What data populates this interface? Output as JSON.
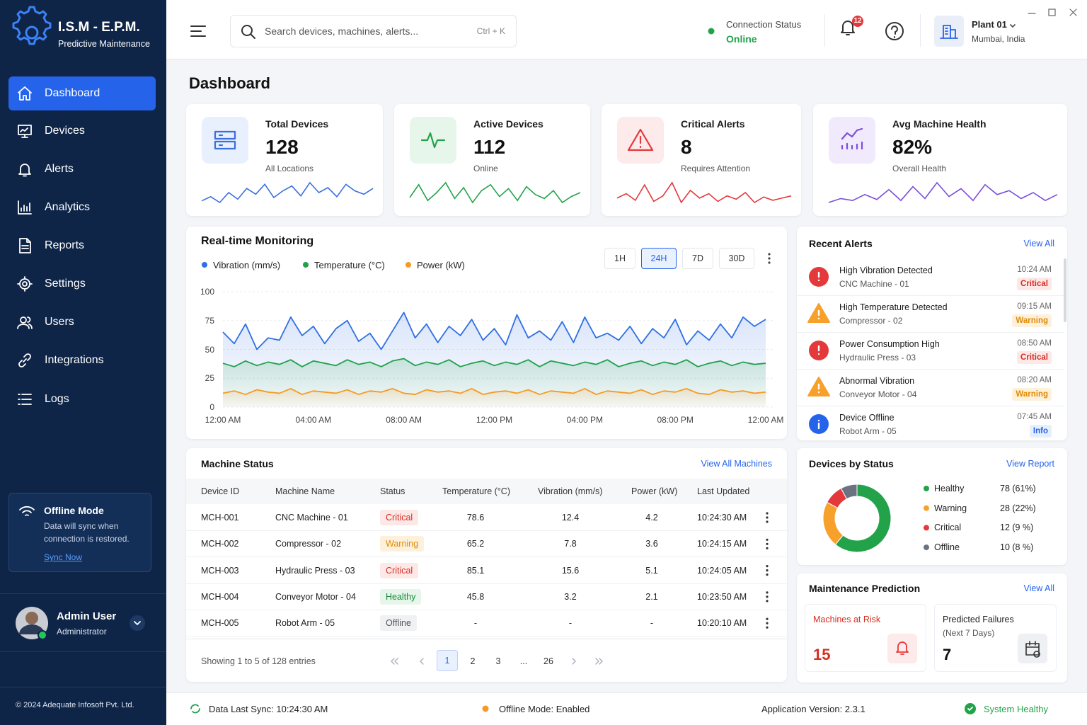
{
  "brand": {
    "title": "I.S.M - E.P.M.",
    "subtitle": "Predictive Maintenance"
  },
  "nav": [
    "Dashboard",
    "Devices",
    "Alerts",
    "Analytics",
    "Reports",
    "Settings",
    "Users",
    "Integrations",
    "Logs"
  ],
  "offline": {
    "title": "Offline Mode",
    "text": "Data will sync when connection is restored.",
    "link": "Sync Now"
  },
  "user": {
    "name": "Admin User",
    "role": "Administrator"
  },
  "copyright": "© 2024 Adequate Infosoft Pvt. Ltd.",
  "header": {
    "search_placeholder": "Search devices, machines, alerts...",
    "shortcut": "Ctrl + K",
    "connection_label": "Connection Status",
    "connection_value": "Online",
    "notifications": 12,
    "plant": "Plant 01",
    "location": "Mumbai, India"
  },
  "page_title": "Dashboard",
  "kpis": [
    {
      "label": "Total Devices",
      "value": 128,
      "sub": "All Locations",
      "color": "#3b6fe0",
      "trend": [
        40,
        45,
        38,
        50,
        42,
        55,
        48,
        60,
        44,
        52,
        58,
        46,
        62,
        50,
        56,
        45,
        60,
        52,
        48,
        55
      ]
    },
    {
      "label": "Active Devices",
      "value": 112,
      "sub": "Online",
      "color": "#22a34a",
      "trend": [
        45,
        58,
        42,
        50,
        60,
        44,
        55,
        40,
        52,
        58,
        46,
        54,
        42,
        56,
        48,
        44,
        52,
        40,
        46,
        50
      ]
    },
    {
      "label": "Critical Alerts",
      "value": 8,
      "sub": "Requires Attention",
      "color": "#e5383b",
      "trend": [
        48,
        52,
        46,
        60,
        45,
        50,
        62,
        44,
        55,
        48,
        52,
        45,
        50,
        47,
        53,
        44,
        49,
        46,
        48,
        50
      ]
    },
    {
      "label": "Avg Machine Health",
      "value": "82%",
      "sub": "Overall Health",
      "color": "#7c4ddb",
      "trend": [
        42,
        46,
        44,
        50,
        45,
        55,
        44,
        58,
        46,
        62,
        48,
        56,
        44,
        60,
        50,
        54,
        46,
        52,
        44,
        50
      ]
    }
  ],
  "chart_data": [
    {
      "type": "line",
      "title": "Real-time Monitoring",
      "ranges": [
        "1H",
        "24H",
        "7D",
        "30D"
      ],
      "selected_range": "24H",
      "categories": [
        "12:00 AM",
        null,
        null,
        null,
        null,
        null,
        null,
        null,
        "04:00 AM",
        null,
        null,
        null,
        null,
        null,
        null,
        null,
        "08:00 AM",
        null,
        null,
        null,
        null,
        null,
        null,
        null,
        "12:00 PM",
        null,
        null,
        null,
        null,
        null,
        null,
        null,
        "04:00 PM",
        null,
        null,
        null,
        null,
        null,
        null,
        null,
        "08:00 PM",
        null,
        null,
        null,
        null,
        null,
        null,
        null,
        "12:00 AM"
      ],
      "ylim": [
        0,
        100
      ],
      "yticks": [
        0,
        25,
        50,
        75,
        100
      ],
      "grid": true,
      "series": [
        {
          "name": "Vibration (mm/s)",
          "color": "#2f6fe4",
          "values": [
            65,
            55,
            72,
            50,
            60,
            58,
            78,
            62,
            70,
            55,
            68,
            75,
            57,
            64,
            50,
            66,
            82,
            60,
            72,
            56,
            70,
            62,
            76,
            58,
            68,
            54,
            80,
            60,
            66,
            58,
            74,
            56,
            78,
            60,
            64,
            58,
            70,
            55,
            68,
            60,
            76,
            54,
            66,
            58,
            72,
            60,
            78,
            70,
            76
          ]
        },
        {
          "name": "Temperature (°C)",
          "color": "#22a04b",
          "values": [
            38,
            35,
            40,
            36,
            39,
            37,
            41,
            35,
            40,
            38,
            36,
            41,
            37,
            39,
            35,
            40,
            42,
            36,
            39,
            37,
            41,
            35,
            38,
            40,
            36,
            39,
            37,
            41,
            35,
            40,
            38,
            36,
            39,
            37,
            41,
            35,
            38,
            40,
            36,
            39,
            37,
            41,
            35,
            38,
            40,
            36,
            39,
            37,
            38
          ]
        },
        {
          "name": "Power (kW)",
          "color": "#f59a23",
          "values": [
            12,
            14,
            11,
            15,
            13,
            12,
            16,
            11,
            14,
            13,
            12,
            15,
            11,
            14,
            13,
            16,
            12,
            11,
            15,
            13,
            14,
            12,
            16,
            11,
            13,
            14,
            12,
            15,
            11,
            14,
            13,
            12,
            16,
            11,
            14,
            13,
            12,
            15,
            11,
            14,
            13,
            16,
            12,
            11,
            15,
            13,
            14,
            12,
            13
          ]
        }
      ]
    },
    {
      "type": "donut",
      "title": "Devices by Status",
      "link": "View Report",
      "categories": [
        "Healthy",
        "Warning",
        "Critical",
        "Offline"
      ],
      "values": [
        78,
        28,
        12,
        10
      ],
      "value_labels": [
        "78 (61%)",
        "28 (22%)",
        "12 (9 %)",
        "10 (8 %)"
      ],
      "colors": [
        "#22a34a",
        "#f7a12b",
        "#e5383b",
        "#6b7280"
      ]
    }
  ],
  "alerts": {
    "title": "Recent Alerts",
    "link": "View All",
    "items": [
      {
        "title": "High Vibration Detected",
        "device": "CNC Machine - 01",
        "time": "10:24 AM",
        "level": "Critical"
      },
      {
        "title": "High Temperature Detected",
        "device": "Compressor - 02",
        "time": "09:15 AM",
        "level": "Warning"
      },
      {
        "title": "Power Consumption High",
        "device": "Hydraulic Press - 03",
        "time": "08:50 AM",
        "level": "Critical"
      },
      {
        "title": "Abnormal Vibration",
        "device": "Conveyor Motor - 04",
        "time": "08:20 AM",
        "level": "Warning"
      },
      {
        "title": "Device Offline",
        "device": "Robot Arm - 05",
        "time": "07:45 AM",
        "level": "Info"
      }
    ]
  },
  "table": {
    "title": "Machine Status",
    "link": "View All Machines",
    "columns": [
      "Device ID",
      "Machine Name",
      "Status",
      "Temperature (°C)",
      "Vibration (mm/s)",
      "Power (kW)",
      "Last Updated"
    ],
    "rows": [
      [
        "MCH-001",
        "CNC Machine - 01",
        "Critical",
        78.6,
        12.4,
        4.2,
        "10:24:30 AM"
      ],
      [
        "MCH-002",
        "Compressor - 02",
        "Warning",
        65.2,
        7.8,
        3.6,
        "10:24:15 AM"
      ],
      [
        "MCH-003",
        "Hydraulic Press - 03",
        "Critical",
        85.1,
        15.6,
        5.1,
        "10:24:05 AM"
      ],
      [
        "MCH-004",
        "Conveyor Motor - 04",
        "Healthy",
        45.8,
        3.2,
        2.1,
        "10:23:50 AM"
      ],
      [
        "MCH-005",
        "Robot Arm - 05",
        "Offline",
        "-",
        "-",
        "-",
        "10:20:10 AM"
      ]
    ],
    "footer": "Showing 1 to 5 of 128 entries",
    "pages": [
      "1",
      "2",
      "3",
      "...",
      "26"
    ]
  },
  "maintenance": {
    "title": "Maintenance Prediction",
    "link": "View All",
    "risk_label": "Machines at Risk",
    "risk_value": 15,
    "failures_label": "Predicted Failures",
    "failures_period": "(Next 7 Days)",
    "failures_value": 7
  },
  "footer": {
    "sync": "Data Last Sync: 10:24:30 AM",
    "offline": "Offline Mode: Enabled",
    "version": "Application Version: 2.3.1",
    "health": "System Healthy"
  }
}
